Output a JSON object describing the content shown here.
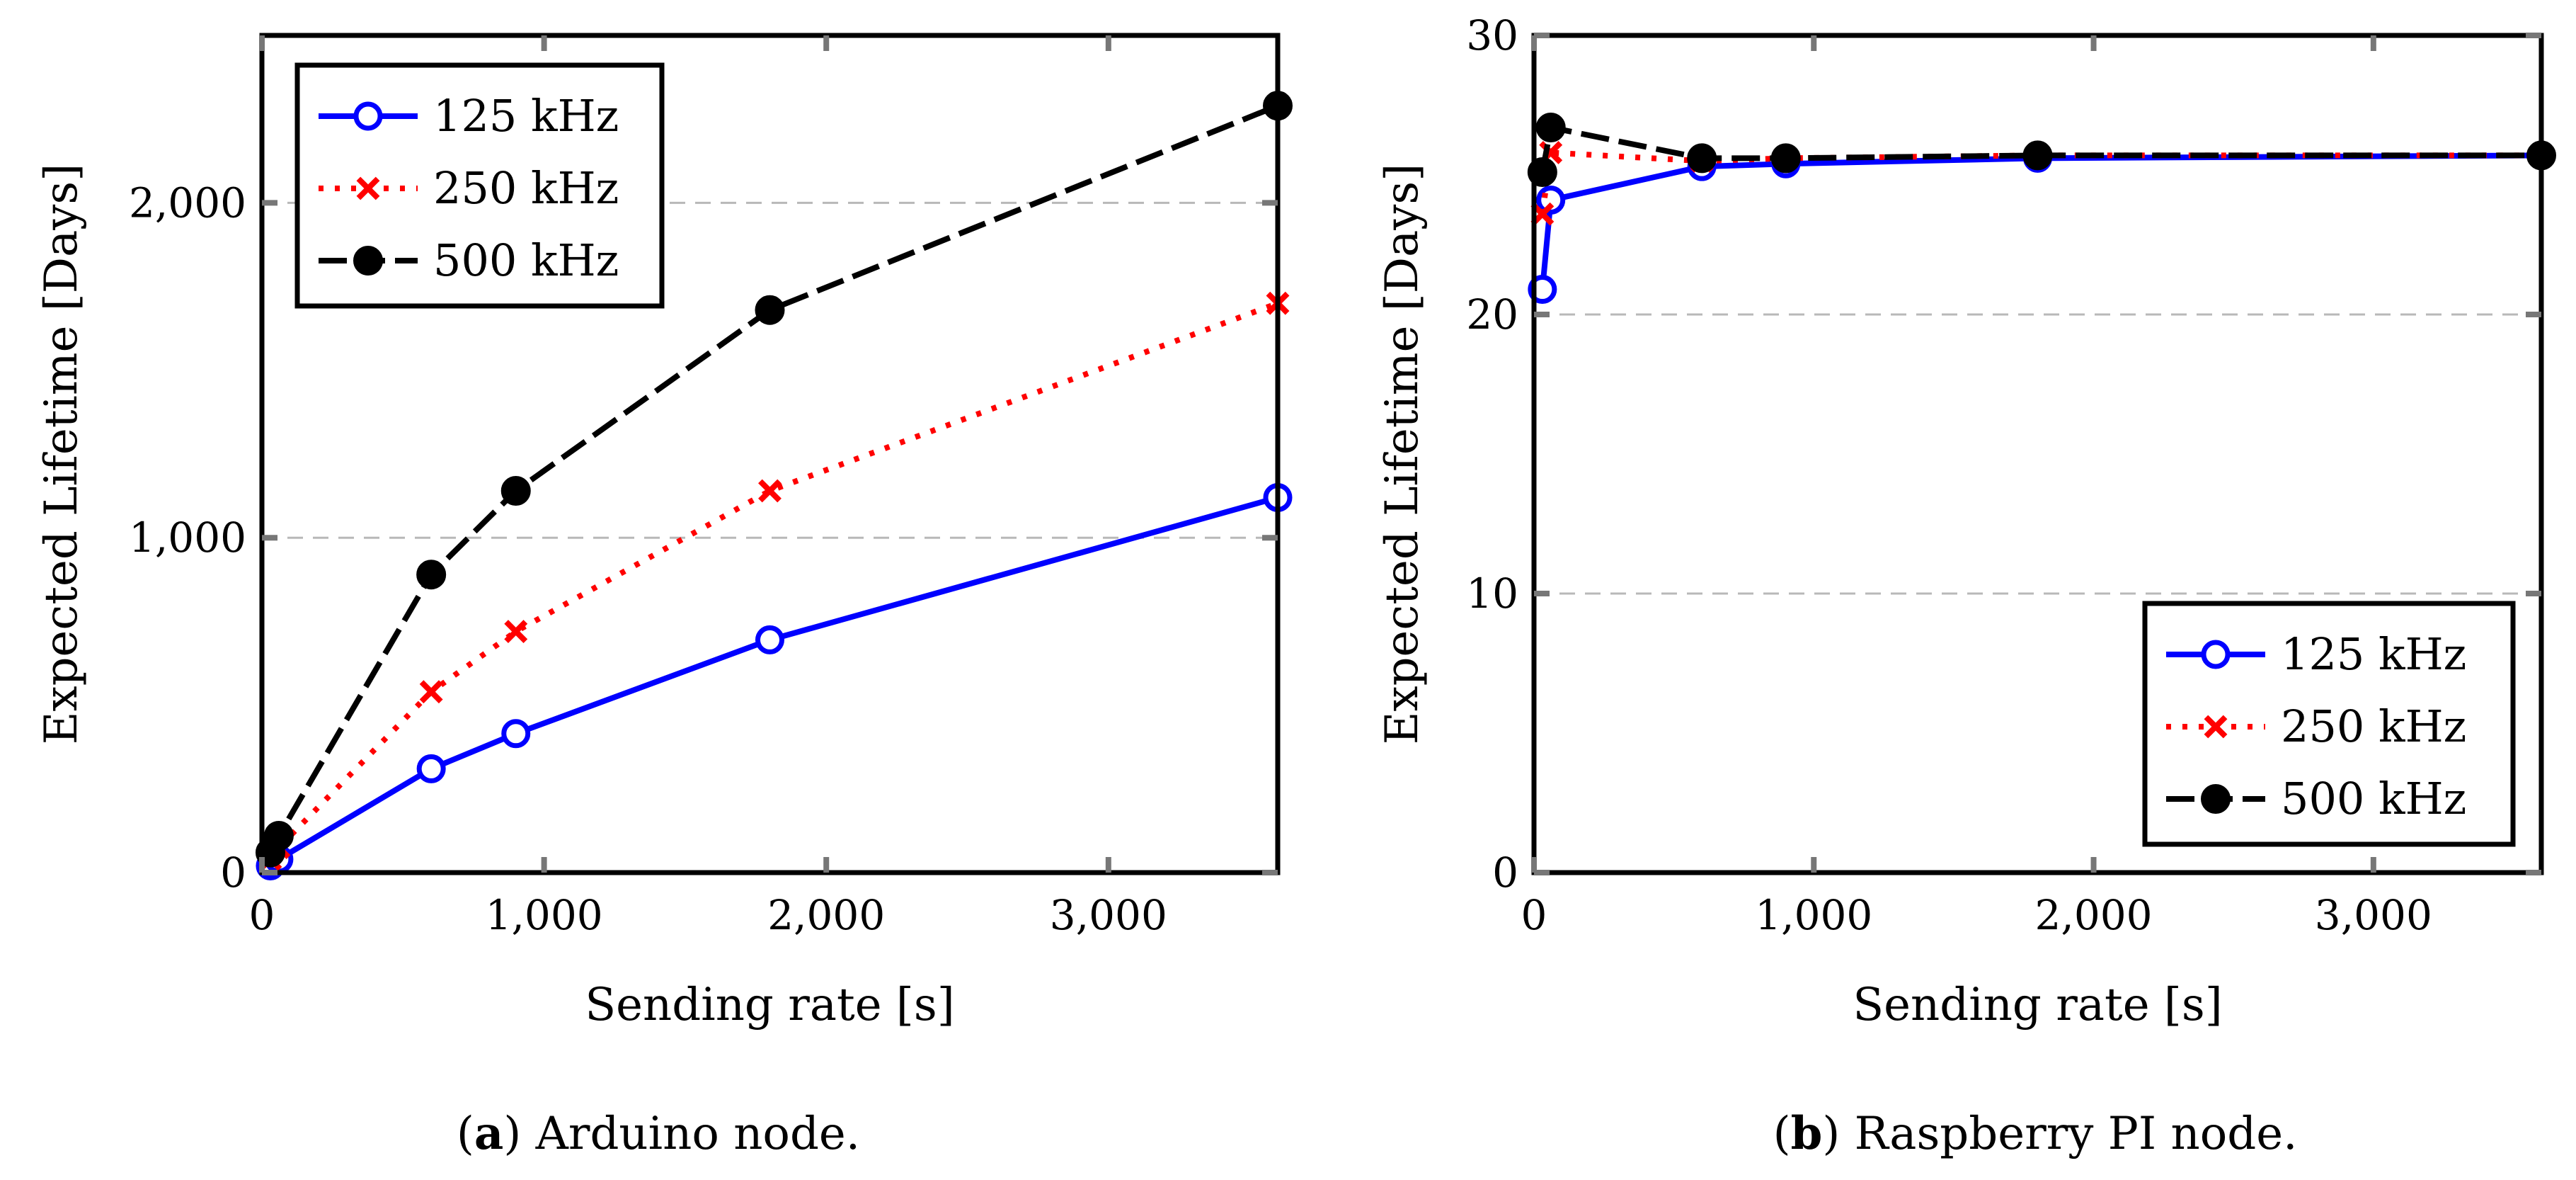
{
  "chart_data": [
    {
      "type": "line",
      "caption_letter": "a",
      "caption_text": " Arduino node.",
      "xlabel": "Sending rate [s]",
      "ylabel": "Expected Lifetime [Days]",
      "xlim": [
        0,
        3600
      ],
      "ylim": [
        0,
        2500
      ],
      "xticks": [
        0,
        1000,
        2000,
        3000
      ],
      "xtick_labels": [
        "0",
        "1,000",
        "2,000",
        "3,000"
      ],
      "yticks": [
        0,
        1000,
        2000
      ],
      "ytick_labels": [
        "0",
        "1,000",
        "2,000"
      ],
      "grid": "horizontal dashed",
      "legend_position": "top-left",
      "series": [
        {
          "name": "125 kHz",
          "color": "#0000ff",
          "dash": "solid",
          "marker": "circle-open",
          "x": [
            30,
            60,
            600,
            900,
            1800,
            3600
          ],
          "y": [
            20,
            40,
            310,
            415,
            695,
            1120
          ]
        },
        {
          "name": "250 kHz",
          "color": "#ff0000",
          "dash": "dotted",
          "marker": "x",
          "x": [
            30,
            60,
            600,
            900,
            1800,
            3600
          ],
          "y": [
            40,
            75,
            540,
            720,
            1140,
            1700
          ]
        },
        {
          "name": "500 kHz",
          "color": "#000000",
          "dash": "dashed",
          "marker": "circle-filled",
          "x": [
            30,
            60,
            600,
            900,
            1800,
            3600
          ],
          "y": [
            60,
            110,
            890,
            1140,
            1680,
            2290
          ]
        }
      ]
    },
    {
      "type": "line",
      "caption_letter": "b",
      "caption_text": " Raspberry PI node.",
      "xlabel": "Sending rate [s]",
      "ylabel": "Expected Lifetime [Days]",
      "xlim": [
        0,
        3600
      ],
      "ylim": [
        0,
        30
      ],
      "xticks": [
        0,
        1000,
        2000,
        3000
      ],
      "xtick_labels": [
        "0",
        "1,000",
        "2,000",
        "3,000"
      ],
      "yticks": [
        0,
        10,
        20,
        30
      ],
      "ytick_labels": [
        "0",
        "10",
        "20",
        "30"
      ],
      "grid": "horizontal dashed",
      "legend_position": "bottom-right",
      "series": [
        {
          "name": "125 kHz",
          "color": "#0000ff",
          "dash": "solid",
          "marker": "circle-open",
          "x": [
            30,
            60,
            600,
            900,
            1800,
            3600
          ],
          "y": [
            20.9,
            24.1,
            25.3,
            25.4,
            25.6,
            25.7
          ]
        },
        {
          "name": "250 kHz",
          "color": "#ff0000",
          "dash": "dotted",
          "marker": "x",
          "x": [
            30,
            60,
            600,
            900,
            1800,
            3600
          ],
          "y": [
            23.6,
            25.8,
            25.5,
            25.6,
            25.7,
            25.7
          ]
        },
        {
          "name": "500 kHz",
          "color": "#000000",
          "dash": "dashed",
          "marker": "circle-filled",
          "x": [
            30,
            60,
            600,
            900,
            1800,
            3600
          ],
          "y": [
            25.1,
            26.7,
            25.6,
            25.6,
            25.7,
            25.7
          ]
        }
      ]
    }
  ]
}
